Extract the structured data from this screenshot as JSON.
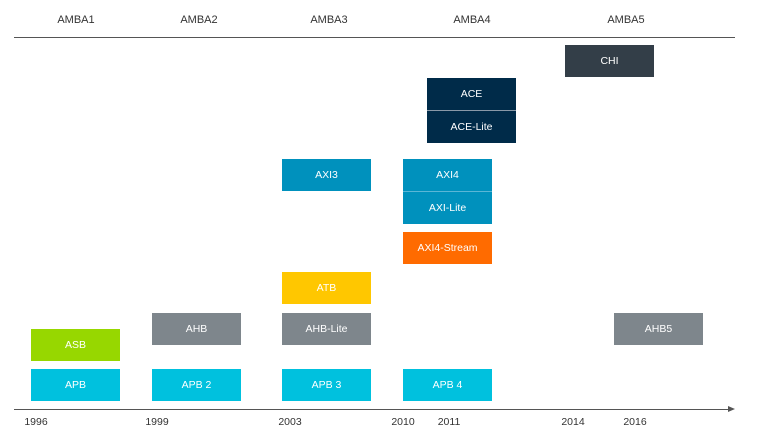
{
  "generations": [
    "AMBA1",
    "AMBA2",
    "AMBA3",
    "AMBA4",
    "AMBA5"
  ],
  "years": [
    "1996",
    "1999",
    "2003",
    "2010",
    "2011",
    "2014",
    "2016"
  ],
  "protocols": {
    "asb": "ASB",
    "apb": "APB",
    "ahb": "AHB",
    "apb2": "APB 2",
    "axi3": "AXI3",
    "atb": "ATB",
    "ahb_lite": "AHB-Lite",
    "apb3": "APB 3",
    "ace": "ACE",
    "ace_lite": "ACE-Lite",
    "axi4": "AXI4",
    "axi_lite": "AXI-Lite",
    "axi4_stream": "AXI4-Stream",
    "apb4": "APB 4",
    "chi": "CHI",
    "ahb5": "AHB5"
  },
  "colors": {
    "green": "#97d700",
    "cyan": "#00c1de",
    "grey": "#7e868c",
    "blue": "#0091bd",
    "orange": "#ff6b00",
    "yellow": "#ffc700",
    "navy": "#002b49",
    "dark": "#333e48"
  }
}
